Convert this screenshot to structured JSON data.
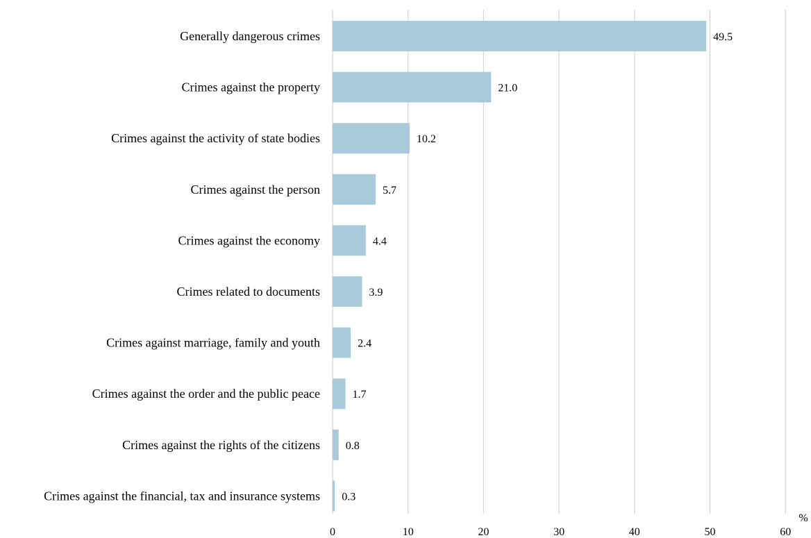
{
  "chart_data": {
    "type": "bar",
    "orientation": "horizontal",
    "categories": [
      "Generally dangerous crimes",
      "Crimes against the property",
      "Crimes against the activity of state bodies",
      "Crimes against the person",
      "Crimes against the economy",
      "Crimes related to documents",
      "Crimes against marriage, family and youth",
      "Crimes against the order and the public peace",
      "Crimes against the rights of the citizens",
      "Crimes against the financial, tax and insurance systems"
    ],
    "values": [
      49.5,
      21.0,
      10.2,
      5.7,
      4.4,
      3.9,
      2.4,
      1.7,
      0.8,
      0.3
    ],
    "data_labels": [
      "49.5",
      "21.0",
      "10.2",
      "5.7",
      "4.4",
      "3.9",
      "2.4",
      "1.7",
      "0.8",
      "0.3"
    ],
    "xlim": [
      0,
      60
    ],
    "xticks": [
      0,
      10,
      20,
      30,
      40,
      50,
      60
    ],
    "xtick_labels": [
      "0",
      "10",
      "20",
      "30",
      "40",
      "50",
      "60"
    ],
    "unit": "%",
    "grid": "vertical",
    "bar_color": "#a8cadb",
    "grid_color": "#d3d3d3",
    "legend": "none",
    "title": "",
    "xlabel": "",
    "ylabel": ""
  }
}
